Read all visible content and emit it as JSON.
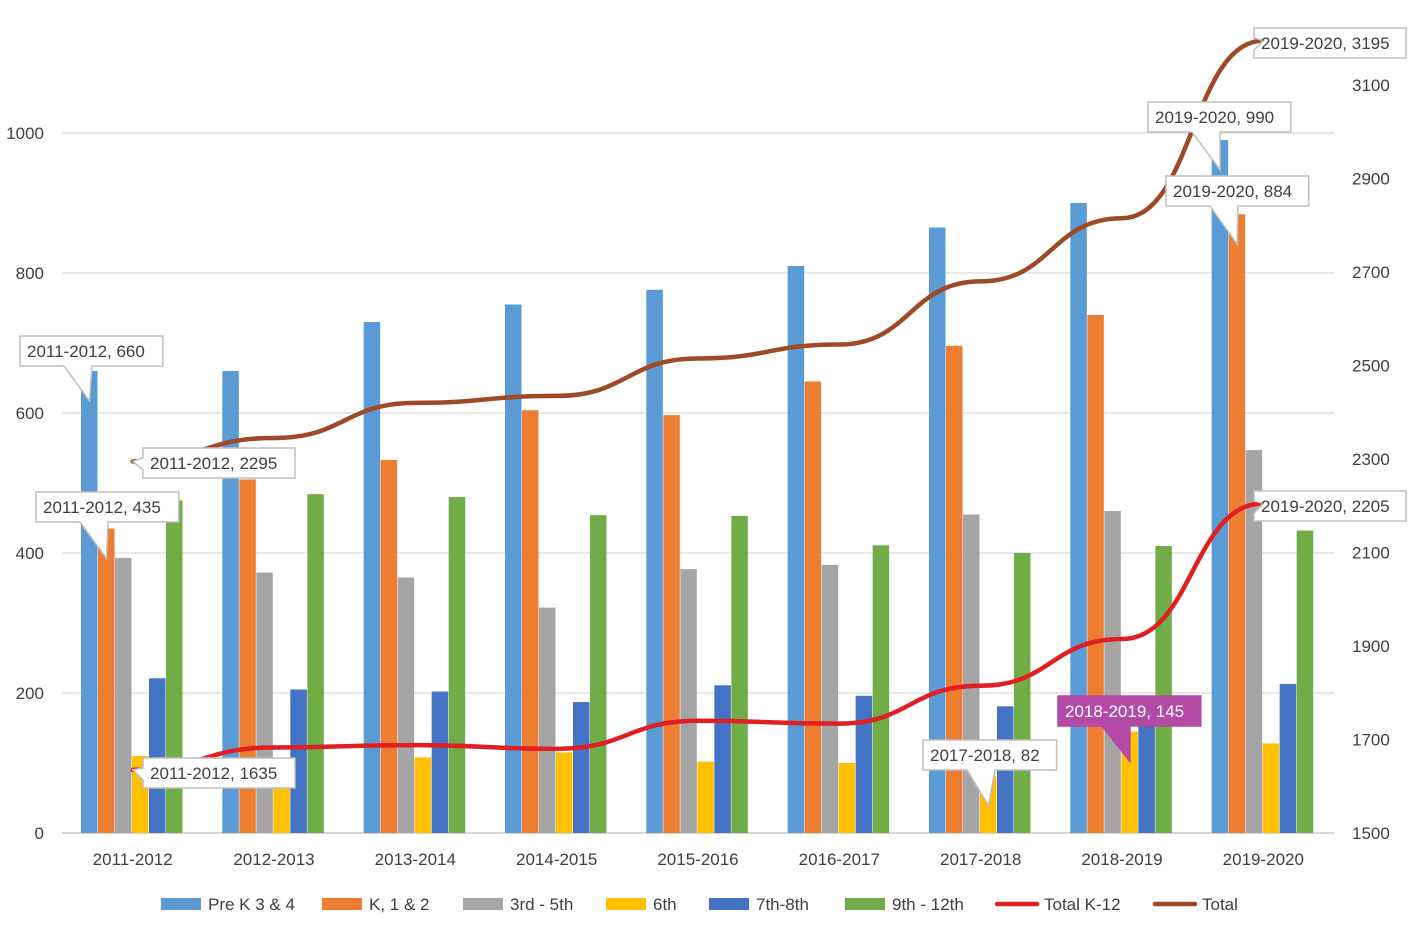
{
  "chart_data": {
    "type": "bar",
    "categories": [
      "2011-2012",
      "2012-2013",
      "2013-2014",
      "2014-2015",
      "2015-2016",
      "2016-2017",
      "2017-2018",
      "2018-2019",
      "2019-2020"
    ],
    "series": [
      {
        "name": "Pre K 3 & 4",
        "type": "bar",
        "axis": "left",
        "color": "#5B9BD5",
        "values": [
          660,
          660,
          730,
          755,
          776,
          810,
          865,
          900,
          990
        ]
      },
      {
        "name": "K, 1 & 2",
        "type": "bar",
        "axis": "left",
        "color": "#ED7D31",
        "values": [
          435,
          505,
          533,
          604,
          597,
          645,
          696,
          740,
          884
        ]
      },
      {
        "name": "3rd - 5th",
        "type": "bar",
        "axis": "left",
        "color": "#A5A5A5",
        "values": [
          393,
          372,
          365,
          322,
          377,
          383,
          455,
          460,
          547
        ]
      },
      {
        "name": "6th",
        "type": "bar",
        "axis": "left",
        "color": "#FFC000",
        "values": [
          110,
          100,
          108,
          115,
          102,
          100,
          82,
          145,
          128
        ]
      },
      {
        "name": "7th-8th",
        "type": "bar",
        "axis": "left",
        "color": "#4472C4",
        "values": [
          221,
          205,
          202,
          187,
          211,
          196,
          181,
          156,
          213
        ]
      },
      {
        "name": "9th - 12th",
        "type": "bar",
        "axis": "left",
        "color": "#70AD47",
        "values": [
          475,
          484,
          480,
          454,
          453,
          411,
          400,
          410,
          432
        ]
      },
      {
        "name": "Total K-12",
        "type": "line",
        "axis": "right",
        "color": "#E02020",
        "values": [
          1635,
          1683,
          1688,
          1680,
          1740,
          1734,
          1815,
          1915,
          2205
        ]
      },
      {
        "name": "Total",
        "type": "line",
        "axis": "right",
        "color": "#9E4A26",
        "values": [
          2295,
          2345,
          2420,
          2435,
          2515,
          2545,
          2680,
          2815,
          3195
        ]
      }
    ],
    "y_left": {
      "min": 0,
      "max": 1000,
      "ticks": [
        "0",
        "200",
        "400",
        "600",
        "800",
        "1000"
      ]
    },
    "y_right": {
      "min": 1500,
      "max": 3100,
      "ticks": [
        "1500",
        "1700",
        "1900",
        "2100",
        "2300",
        "2500",
        "2700",
        "2900",
        "3100"
      ]
    },
    "grid": true,
    "legend_position": "bottom",
    "annotations": [
      {
        "text": "2011-2012, 660",
        "series": 0,
        "index": 0,
        "highlight": false
      },
      {
        "text": "2011-2012, 435",
        "series": 1,
        "index": 0,
        "highlight": false
      },
      {
        "text": "2011-2012, 2295",
        "series": 7,
        "index": 0,
        "highlight": false
      },
      {
        "text": "2011-2012, 1635",
        "series": 6,
        "index": 0,
        "highlight": false
      },
      {
        "text": "2019-2020, 3195",
        "series": 7,
        "index": 8,
        "highlight": false
      },
      {
        "text": "2019-2020, 990",
        "series": 0,
        "index": 8,
        "highlight": false
      },
      {
        "text": "2019-2020, 884",
        "series": 1,
        "index": 8,
        "highlight": false
      },
      {
        "text": "2019-2020, 2205",
        "series": 6,
        "index": 8,
        "highlight": false
      },
      {
        "text": "2017-2018, 82",
        "series": 3,
        "index": 6,
        "highlight": false
      },
      {
        "text": "2018-2019, 145",
        "series": 3,
        "index": 7,
        "highlight": true
      }
    ]
  },
  "colors": {
    "grid": "#D9D9D9",
    "axis": "#BFBFBF",
    "text": "#404040",
    "callout_border": "#BFBFBF",
    "callout_highlight": "#B24AA6"
  }
}
